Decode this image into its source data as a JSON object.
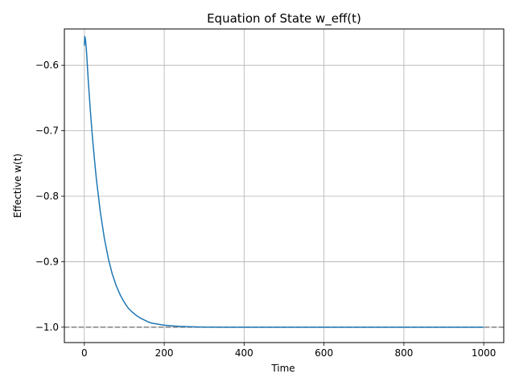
{
  "chart_data": {
    "type": "line",
    "title": "Equation of State w_eff(t)",
    "xlabel": "Time",
    "ylabel": "Effective w(t)",
    "xlim": [
      -50,
      1050
    ],
    "ylim": [
      -1.0235,
      -0.5445
    ],
    "xticks": [
      0,
      200,
      400,
      600,
      800,
      1000
    ],
    "xtick_labels": [
      "0",
      "200",
      "400",
      "600",
      "800",
      "1000"
    ],
    "yticks": [
      -1.0,
      -0.9,
      -0.8,
      -0.7,
      -0.6
    ],
    "ytick_labels": [
      "−1.0",
      "−0.9",
      "−0.8",
      "−0.7",
      "−0.6"
    ],
    "grid": true,
    "series": [
      {
        "color": "#1f77b4",
        "x": [
          0,
          1,
          2,
          3,
          5,
          10,
          15,
          20,
          25,
          30,
          40,
          50,
          60,
          70,
          80,
          90,
          100,
          110,
          120,
          130,
          140,
          150,
          160,
          170,
          180,
          190,
          200,
          220,
          240,
          260,
          280,
          300,
          350,
          400,
          500,
          600,
          700,
          800,
          900,
          1000
        ],
        "y": [
          -0.57,
          -0.556,
          -0.558,
          -0.562,
          -0.575,
          -0.625,
          -0.669,
          -0.708,
          -0.742,
          -0.773,
          -0.824,
          -0.864,
          -0.895,
          -0.919,
          -0.937,
          -0.951,
          -0.962,
          -0.971,
          -0.977,
          -0.982,
          -0.986,
          -0.989,
          -0.992,
          -0.994,
          -0.995,
          -0.996,
          -0.997,
          -0.998,
          -0.9988,
          -0.9993,
          -0.9996,
          -0.9998,
          -0.99995,
          -1.0,
          -1.0,
          -1.0,
          -1.0,
          -1.0,
          -1.0,
          -1.0
        ]
      }
    ],
    "reference_lines": [
      {
        "y": -1.0,
        "style": "dashed",
        "color": "#808080"
      }
    ]
  }
}
